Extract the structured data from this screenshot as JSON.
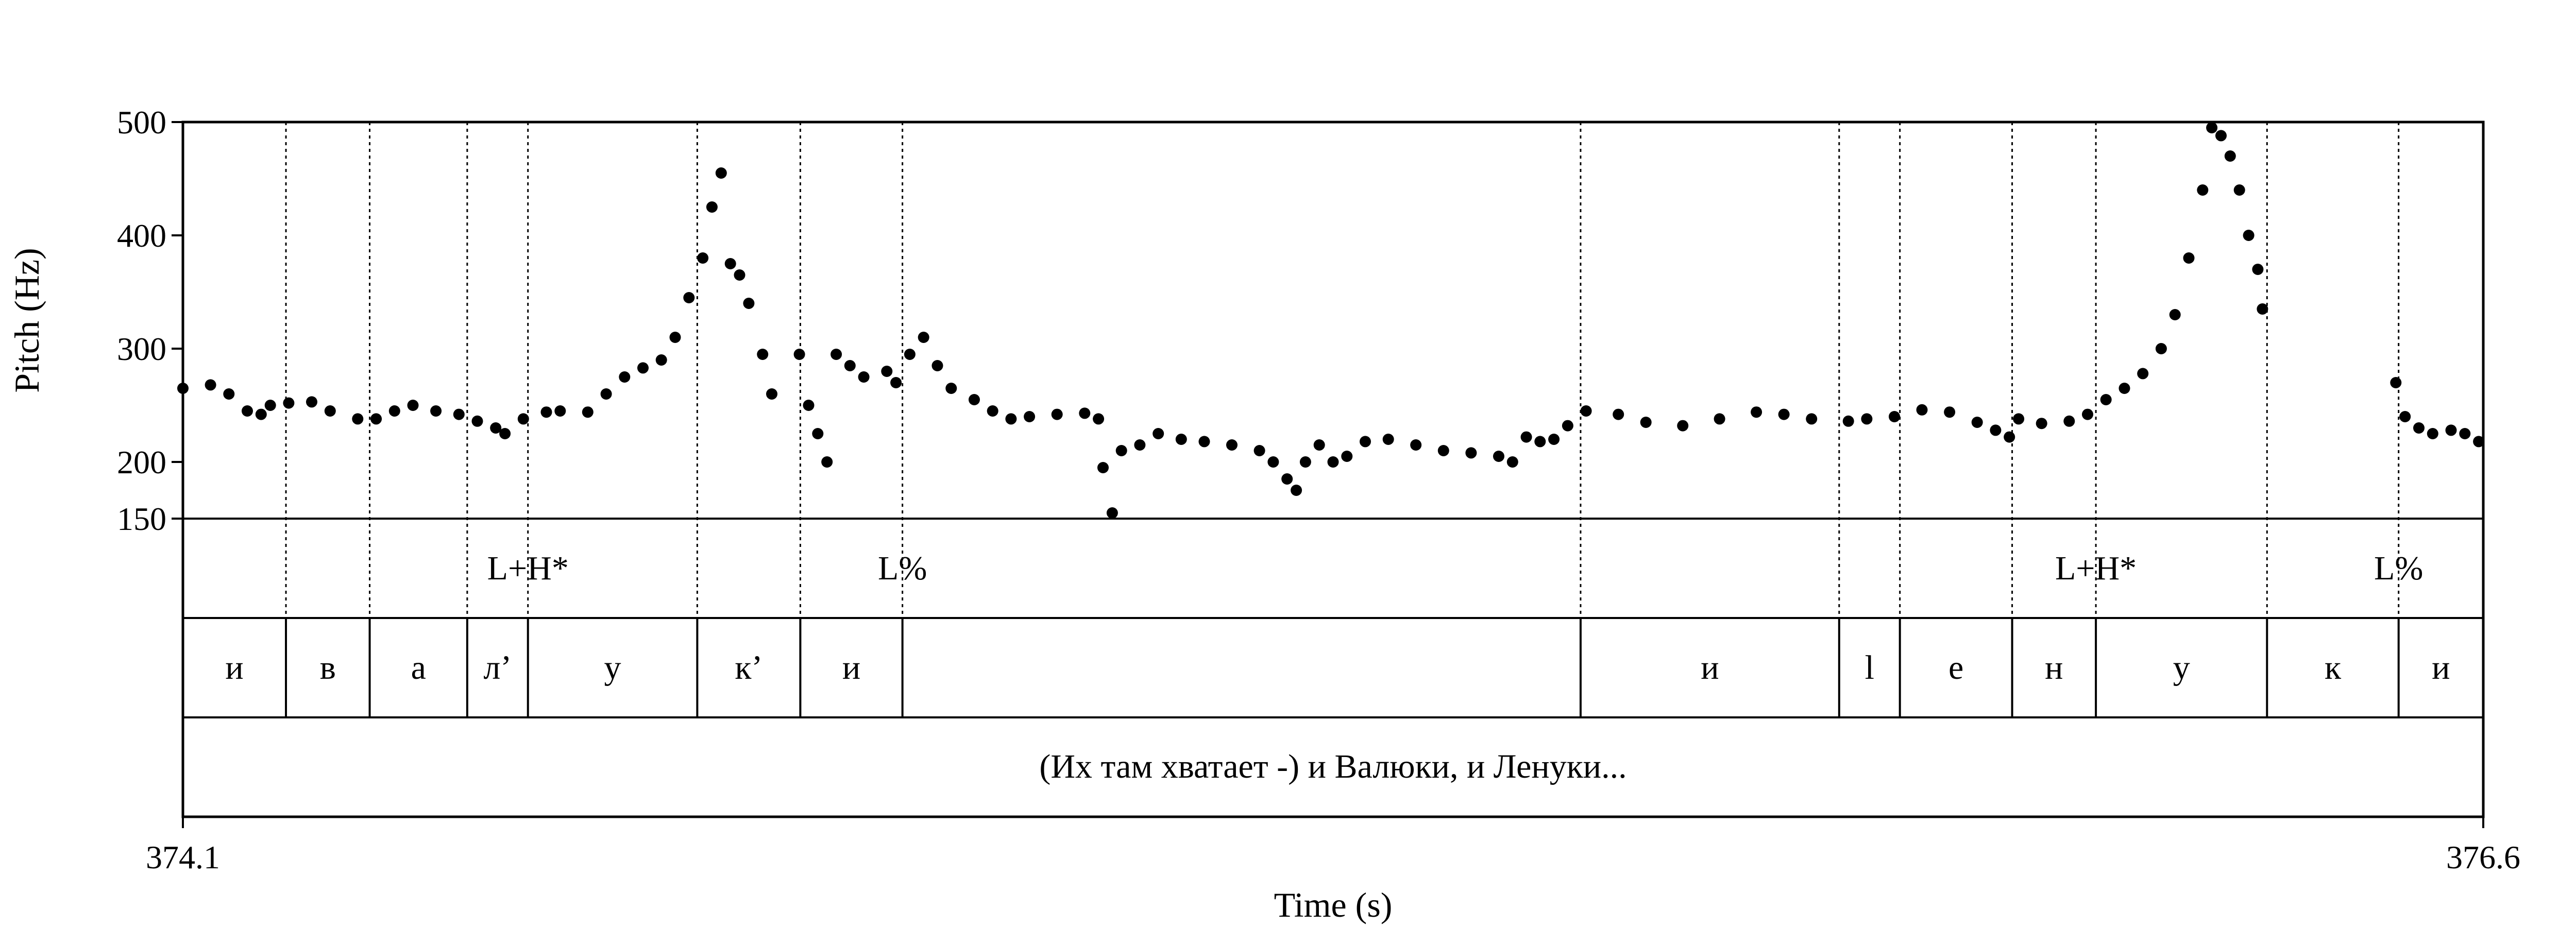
{
  "chart_data": {
    "type": "scatter",
    "ylabel": "Pitch (Hz)",
    "xlabel": "Time (s)",
    "xlim": [
      374.1,
      376.6
    ],
    "ylim": [
      150,
      500
    ],
    "y_ticks": [
      150,
      200,
      300,
      400,
      500
    ],
    "x_tick_labels": [
      "374.1",
      "376.6"
    ],
    "grid": false,
    "segment_boundaries": [
      374.212,
      374.303,
      374.409,
      374.475,
      374.659,
      374.771,
      374.882,
      375.619,
      375.9,
      375.966,
      376.088,
      376.179,
      376.365,
      376.508
    ],
    "tones": [
      {
        "time": 374.475,
        "label": "L+H*"
      },
      {
        "time": 374.882,
        "label": "L%"
      },
      {
        "time": 376.179,
        "label": "L+H*"
      },
      {
        "time": 376.508,
        "label": "L%"
      }
    ],
    "segments": [
      {
        "start": 374.1,
        "end": 374.212,
        "label": "и"
      },
      {
        "start": 374.212,
        "end": 374.303,
        "label": "в"
      },
      {
        "start": 374.303,
        "end": 374.409,
        "label": "а"
      },
      {
        "start": 374.409,
        "end": 374.475,
        "label": "л’"
      },
      {
        "start": 374.475,
        "end": 374.659,
        "label": "у"
      },
      {
        "start": 374.659,
        "end": 374.771,
        "label": "к’"
      },
      {
        "start": 374.771,
        "end": 374.882,
        "label": "и"
      },
      {
        "start": 374.882,
        "end": 375.619,
        "label": ""
      },
      {
        "start": 375.619,
        "end": 375.9,
        "label": "и"
      },
      {
        "start": 375.9,
        "end": 375.966,
        "label": "l"
      },
      {
        "start": 375.966,
        "end": 376.088,
        "label": "е"
      },
      {
        "start": 376.088,
        "end": 376.179,
        "label": "н"
      },
      {
        "start": 376.179,
        "end": 376.365,
        "label": "у"
      },
      {
        "start": 376.365,
        "end": 376.508,
        "label": "к"
      },
      {
        "start": 376.508,
        "end": 376.6,
        "label": "и"
      }
    ],
    "sentence": "(Их там хватает -) и Валюки, и Ленуки...",
    "pitch_contour": [
      [
        374.1,
        265
      ],
      [
        374.13,
        268
      ],
      [
        374.15,
        260
      ],
      [
        374.17,
        245
      ],
      [
        374.185,
        242
      ],
      [
        374.195,
        250
      ],
      [
        374.215,
        252
      ],
      [
        374.24,
        253
      ],
      [
        374.26,
        245
      ],
      [
        374.29,
        238
      ],
      [
        374.31,
        238
      ],
      [
        374.33,
        245
      ],
      [
        374.35,
        250
      ],
      [
        374.375,
        245
      ],
      [
        374.4,
        242
      ],
      [
        374.42,
        236
      ],
      [
        374.44,
        230
      ],
      [
        374.45,
        225
      ],
      [
        374.47,
        238
      ],
      [
        374.495,
        244
      ],
      [
        374.51,
        245
      ],
      [
        374.54,
        244
      ],
      [
        374.56,
        260
      ],
      [
        374.58,
        275
      ],
      [
        374.6,
        283
      ],
      [
        374.62,
        290
      ],
      [
        374.635,
        310
      ],
      [
        374.65,
        345
      ],
      [
        374.665,
        380
      ],
      [
        374.675,
        425
      ],
      [
        374.685,
        455
      ],
      [
        374.695,
        375
      ],
      [
        374.705,
        365
      ],
      [
        374.715,
        340
      ],
      [
        374.73,
        295
      ],
      [
        374.74,
        260
      ],
      [
        374.77,
        295
      ],
      [
        374.78,
        250
      ],
      [
        374.79,
        225
      ],
      [
        374.8,
        200
      ],
      [
        374.81,
        295
      ],
      [
        374.825,
        285
      ],
      [
        374.84,
        275
      ],
      [
        374.865,
        280
      ],
      [
        374.875,
        270
      ],
      [
        374.89,
        295
      ],
      [
        374.905,
        310
      ],
      [
        374.92,
        285
      ],
      [
        374.935,
        265
      ],
      [
        374.96,
        255
      ],
      [
        374.98,
        245
      ],
      [
        375.0,
        238
      ],
      [
        375.02,
        240
      ],
      [
        375.05,
        242
      ],
      [
        375.08,
        243
      ],
      [
        375.095,
        238
      ],
      [
        375.1,
        195
      ],
      [
        375.11,
        155
      ],
      [
        375.12,
        210
      ],
      [
        375.14,
        215
      ],
      [
        375.16,
        225
      ],
      [
        375.185,
        220
      ],
      [
        375.21,
        218
      ],
      [
        375.24,
        215
      ],
      [
        375.27,
        210
      ],
      [
        375.285,
        200
      ],
      [
        375.3,
        185
      ],
      [
        375.31,
        175
      ],
      [
        375.32,
        200
      ],
      [
        375.335,
        215
      ],
      [
        375.35,
        200
      ],
      [
        375.365,
        205
      ],
      [
        375.385,
        218
      ],
      [
        375.41,
        220
      ],
      [
        375.44,
        215
      ],
      [
        375.47,
        210
      ],
      [
        375.5,
        208
      ],
      [
        375.53,
        205
      ],
      [
        375.545,
        200
      ],
      [
        375.56,
        222
      ],
      [
        375.575,
        218
      ],
      [
        375.59,
        220
      ],
      [
        375.605,
        232
      ],
      [
        375.625,
        245
      ],
      [
        375.66,
        242
      ],
      [
        375.69,
        235
      ],
      [
        375.73,
        232
      ],
      [
        375.77,
        238
      ],
      [
        375.81,
        244
      ],
      [
        375.84,
        242
      ],
      [
        375.87,
        238
      ],
      [
        375.91,
        236
      ],
      [
        375.93,
        238
      ],
      [
        375.96,
        240
      ],
      [
        375.99,
        246
      ],
      [
        376.02,
        244
      ],
      [
        376.05,
        235
      ],
      [
        376.07,
        228
      ],
      [
        376.085,
        222
      ],
      [
        376.095,
        238
      ],
      [
        376.12,
        234
      ],
      [
        376.15,
        236
      ],
      [
        376.17,
        242
      ],
      [
        376.19,
        255
      ],
      [
        376.21,
        265
      ],
      [
        376.23,
        278
      ],
      [
        376.25,
        300
      ],
      [
        376.265,
        330
      ],
      [
        376.28,
        380
      ],
      [
        376.295,
        440
      ],
      [
        376.305,
        495
      ],
      [
        376.315,
        488
      ],
      [
        376.325,
        470
      ],
      [
        376.335,
        440
      ],
      [
        376.345,
        400
      ],
      [
        376.355,
        370
      ],
      [
        376.36,
        335
      ],
      [
        376.505,
        270
      ],
      [
        376.515,
        240
      ],
      [
        376.53,
        230
      ],
      [
        376.545,
        225
      ],
      [
        376.565,
        228
      ],
      [
        376.58,
        225
      ],
      [
        376.595,
        218
      ]
    ]
  }
}
